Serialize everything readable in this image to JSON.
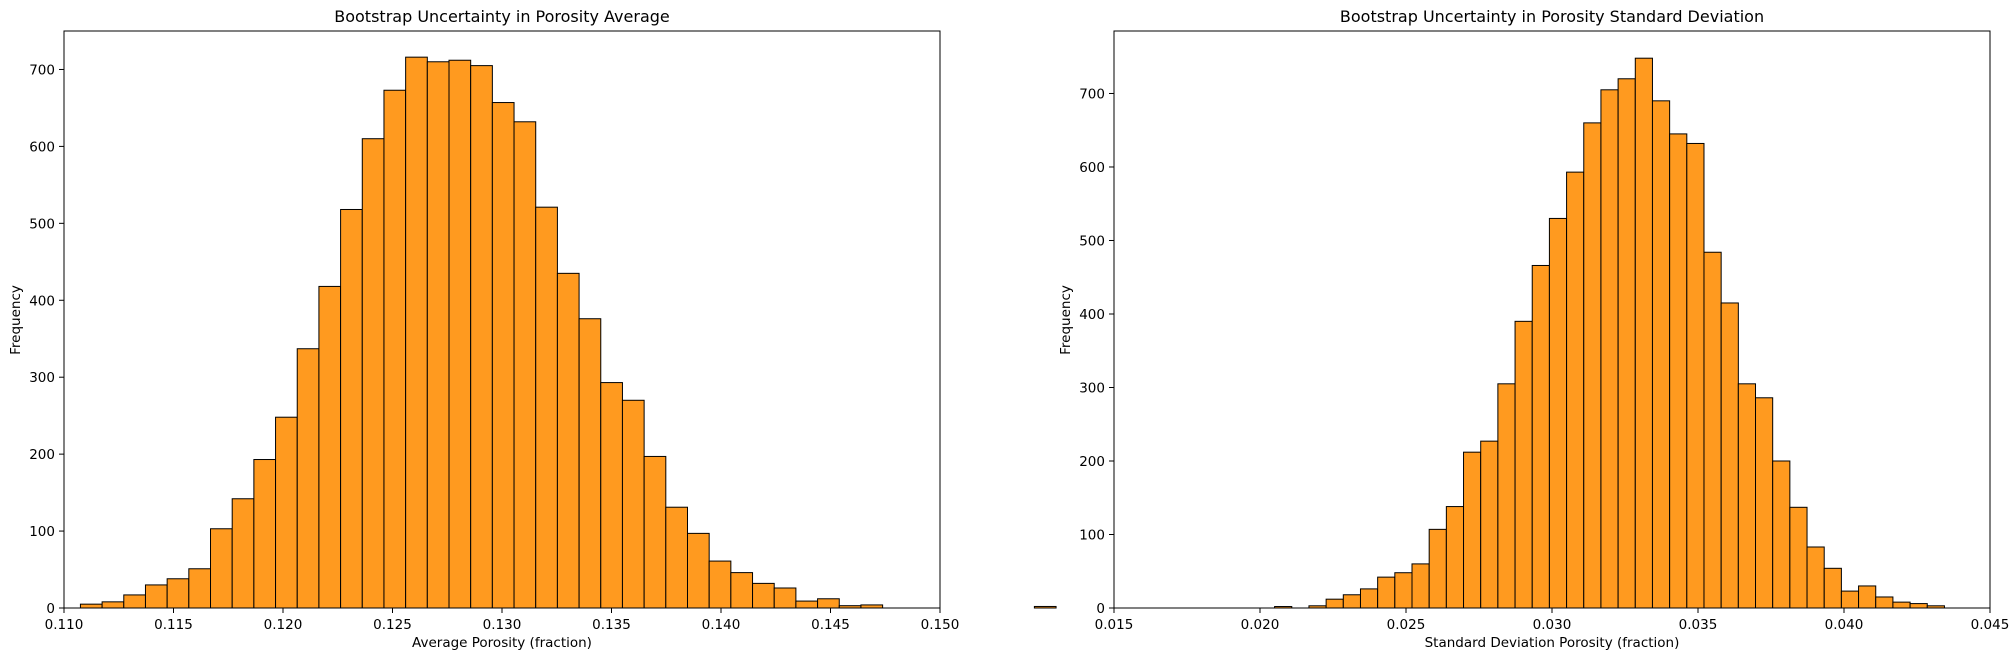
{
  "colors": {
    "bar_fill": "#ff9a1f",
    "bar_edge": "#000000",
    "axes": "#000000",
    "background": "#ffffff"
  },
  "chart_data": [
    {
      "type": "bar",
      "title": "Bootstrap Uncertainty in Porosity Average",
      "xlabel": "Average Porosity (fraction)",
      "ylabel": "Frequency",
      "xlim": [
        0.11,
        0.15
      ],
      "ylim": [
        0,
        750
      ],
      "xticks": [
        "0.110",
        "0.115",
        "0.120",
        "0.125",
        "0.130",
        "0.135",
        "0.140",
        "0.145",
        "0.150"
      ],
      "xtick_values": [
        0.11,
        0.115,
        0.12,
        0.125,
        0.13,
        0.135,
        0.14,
        0.145,
        0.15
      ],
      "yticks": [
        "0",
        "100",
        "200",
        "300",
        "400",
        "500",
        "600",
        "700"
      ],
      "ytick_values": [
        0,
        100,
        200,
        300,
        400,
        500,
        600,
        700
      ],
      "grid": false,
      "bins": {
        "start": 0.11075,
        "width": 0.00099,
        "counts": [
          5,
          8,
          17,
          30,
          38,
          51,
          103,
          142,
          193,
          248,
          337,
          418,
          518,
          610,
          673,
          716,
          710,
          712,
          705,
          657,
          632,
          521,
          435,
          376,
          293,
          270,
          197,
          131,
          97,
          61,
          46,
          32,
          26,
          9,
          12,
          3,
          4,
          0,
          0,
          0,
          0,
          0,
          0,
          0,
          2
        ]
      }
    },
    {
      "type": "bar",
      "title": "Bootstrap Uncertainty in Porosity Standard Deviation",
      "xlabel": "Standard Deviation Porosity (fraction)",
      "ylabel": "Frequency",
      "xlim": [
        0.015,
        0.045
      ],
      "ylim": [
        0,
        785
      ],
      "xticks": [
        "0.015",
        "0.020",
        "0.025",
        "0.030",
        "0.035",
        "0.040",
        "0.045"
      ],
      "xtick_values": [
        0.015,
        0.02,
        0.025,
        0.03,
        0.035,
        0.04,
        0.045
      ],
      "yticks": [
        "0",
        "100",
        "200",
        "300",
        "400",
        "500",
        "600",
        "700"
      ],
      "ytick_values": [
        0,
        100,
        200,
        300,
        400,
        500,
        600,
        700
      ],
      "grid": false,
      "bins": {
        "start": 0.0205,
        "width": 0.0005882,
        "counts": [
          2,
          0,
          3,
          12,
          18,
          26,
          42,
          48,
          60,
          107,
          138,
          212,
          227,
          305,
          390,
          466,
          530,
          593,
          660,
          705,
          720,
          748,
          690,
          645,
          632,
          484,
          415,
          305,
          286,
          200,
          137,
          83,
          54,
          23,
          30,
          15,
          8,
          6,
          3
        ]
      }
    }
  ]
}
